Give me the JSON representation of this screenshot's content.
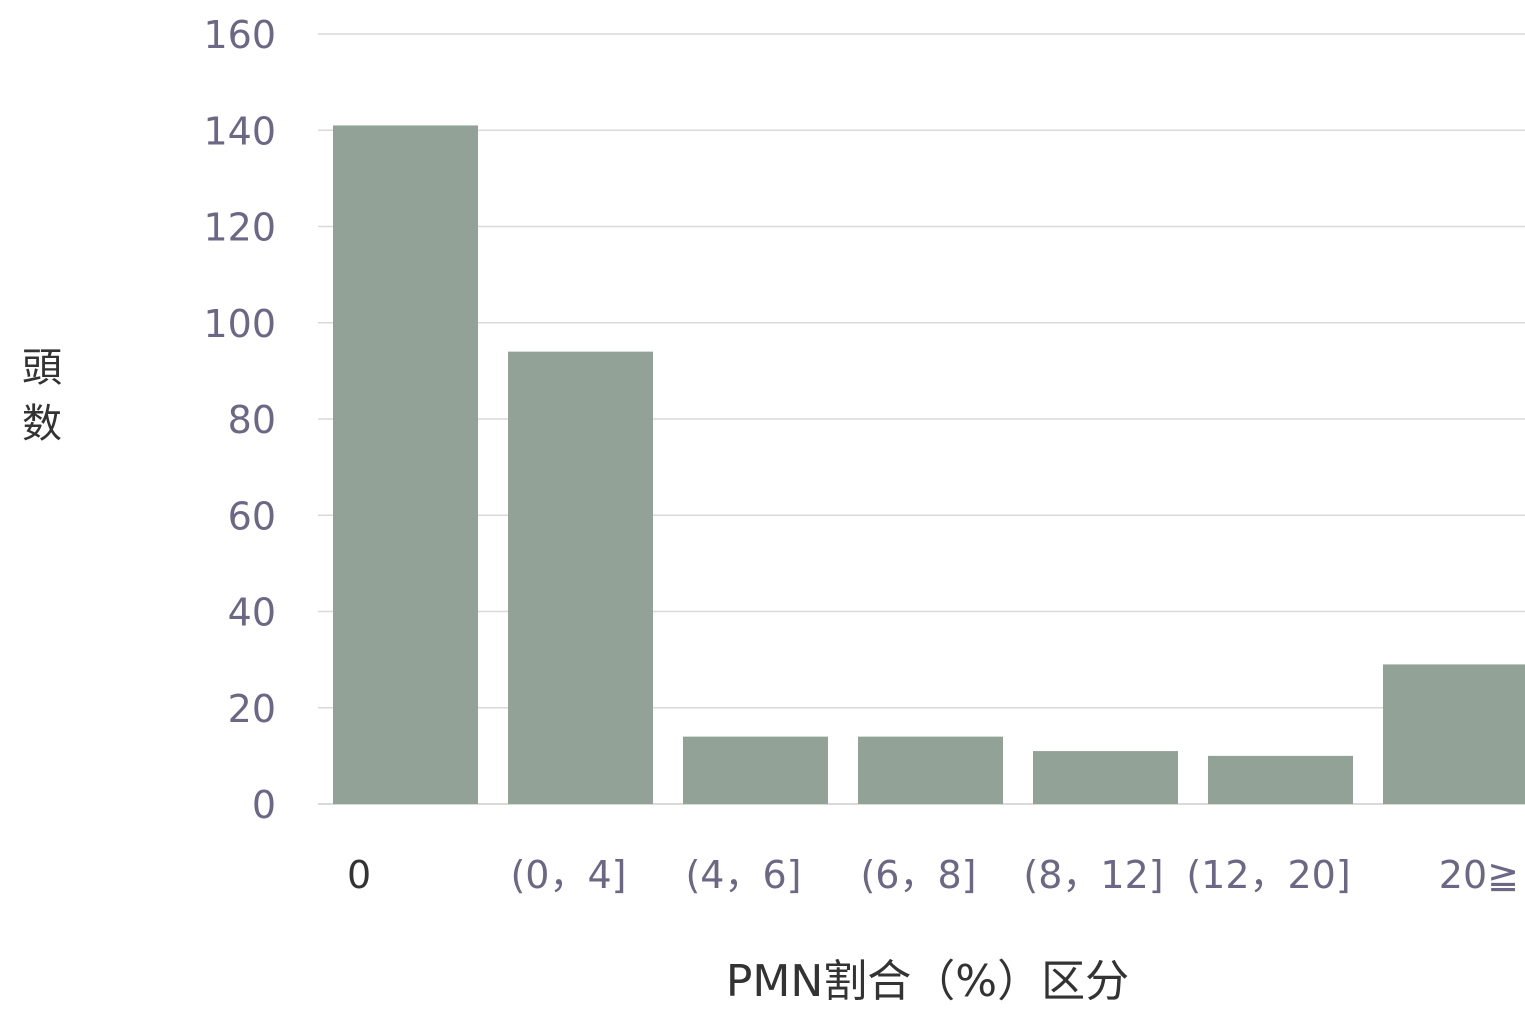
{
  "chart_data": {
    "type": "bar",
    "categories": [
      "0",
      "(0，4]",
      "(4，6]",
      "(6，8]",
      "(8，12]",
      "(12，20]",
      "20≧"
    ],
    "values": [
      141,
      94,
      14,
      14,
      11,
      10,
      29
    ],
    "ylabel_chars": [
      "頭",
      "数"
    ],
    "ylabel": "頭数",
    "xlabel": "PMN割合（%）区分",
    "ylim": [
      0,
      160
    ],
    "yticks": [
      0,
      20,
      40,
      60,
      80,
      100,
      120,
      140,
      160
    ],
    "grid": true,
    "colors": {
      "bar": "#93a297",
      "grid": "#d9d9d9",
      "tick_text": "#6b6785",
      "first_category_text": "#333333"
    }
  }
}
